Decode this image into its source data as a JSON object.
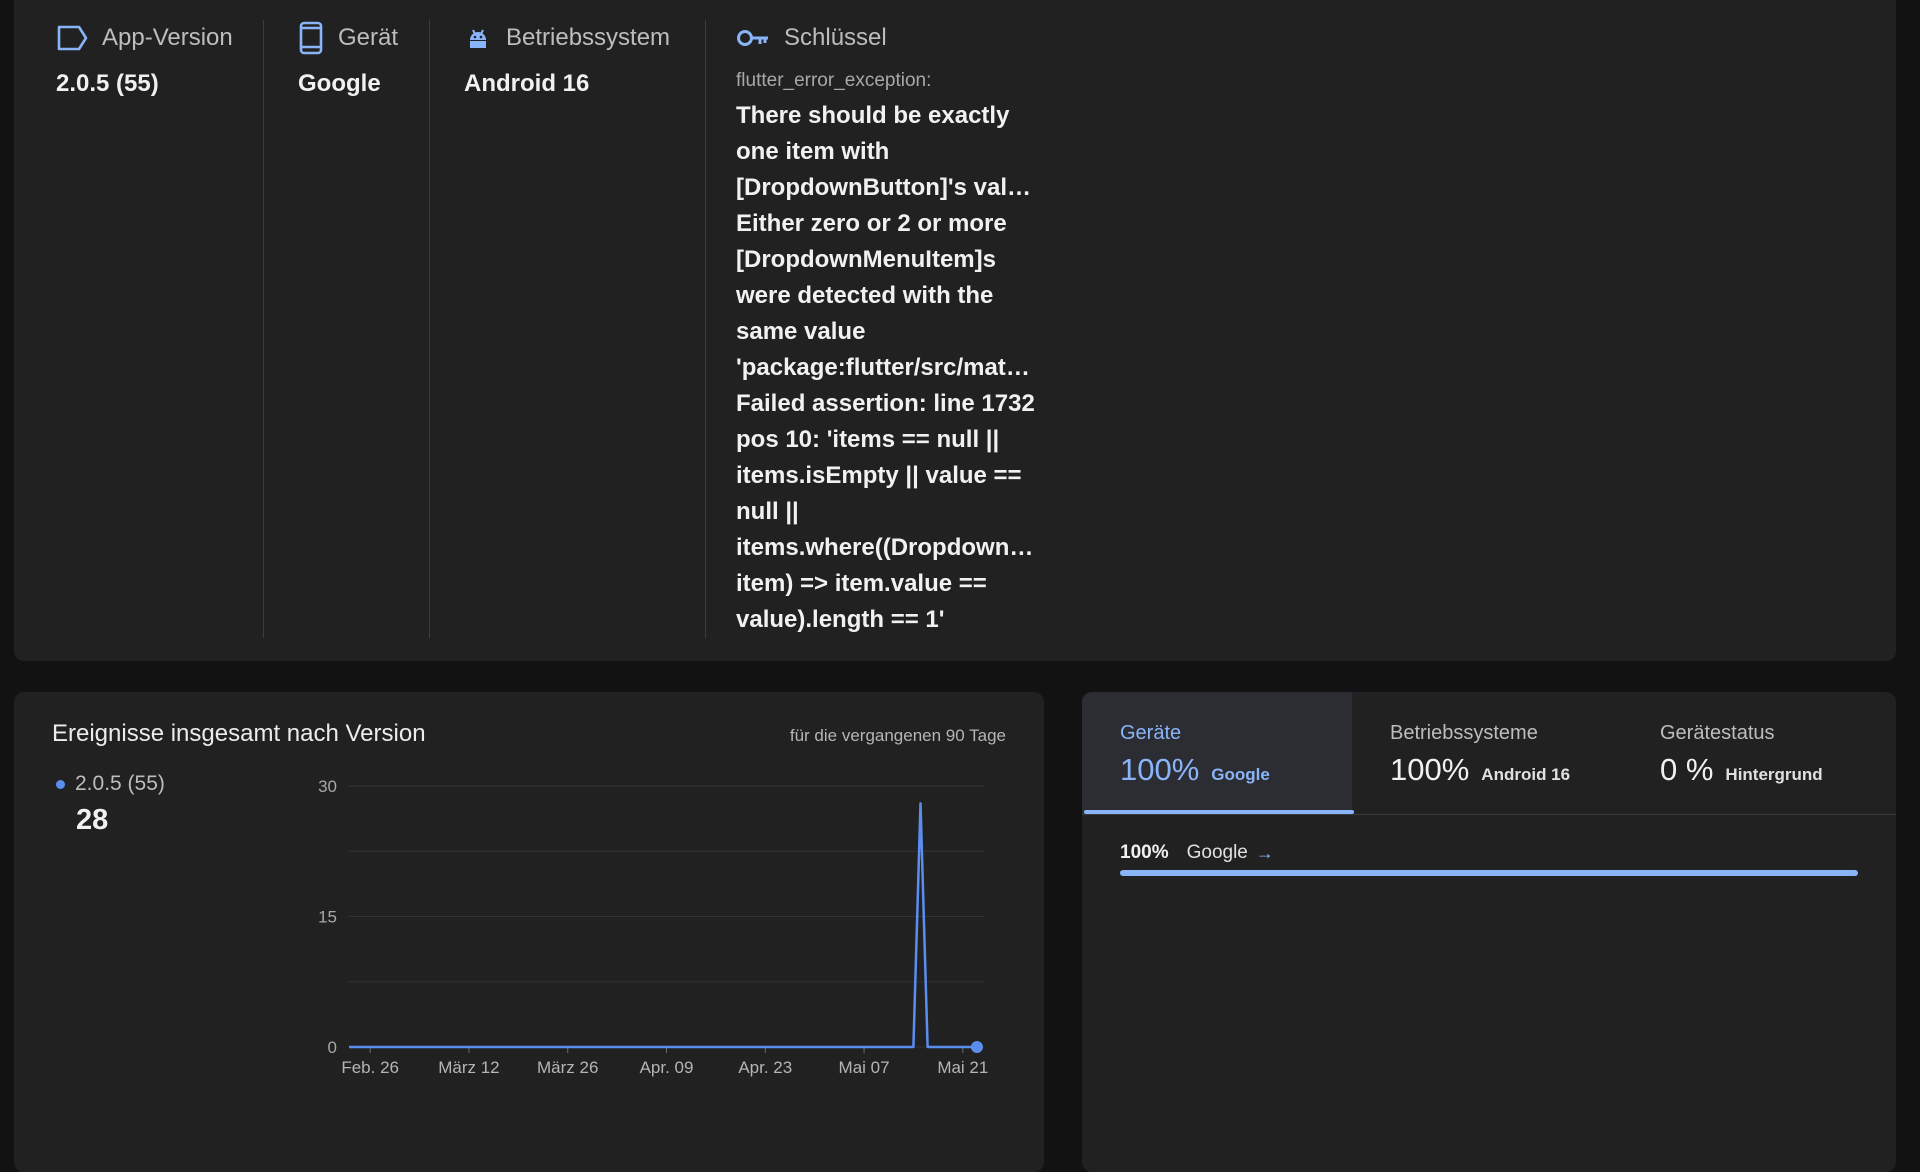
{
  "meta": {
    "app_version": {
      "label": "App-Version",
      "value": "2.0.5 (55)",
      "icon": "label-tag-icon"
    },
    "device": {
      "label": "Gerät",
      "value": "Google",
      "icon": "smartphone-icon"
    },
    "os": {
      "label": "Betriebssystem",
      "value": "Android 16",
      "icon": "android-icon"
    },
    "key": {
      "label": "Schlüssel",
      "icon": "key-icon",
      "name": "flutter_error_exception:",
      "message_lines": [
        "There should be exactly",
        "one item with",
        "[DropdownButton]'s value: .",
        "Either zero or 2 or more",
        "[DropdownMenuItem]s",
        "were detected with the",
        "same value",
        "'package:flutter/src/mater…",
        "Failed assertion: line 1732",
        "pos 10: 'items == null ||",
        "items.isEmpty || value ==",
        "null ||",
        "items.where((DropdownM…",
        "item) => item.value ==",
        "value).length == 1'"
      ]
    }
  },
  "events_chart": {
    "title": "Ereignisse insgesamt nach Version",
    "period": "für die vergangenen 90 Tage",
    "legend": {
      "series": "2.0.5 (55)",
      "total": "28"
    }
  },
  "chart_data": {
    "type": "line",
    "title": "Ereignisse insgesamt nach Version",
    "xlabel": "",
    "ylabel": "",
    "ylim": [
      0,
      30
    ],
    "yticks": [
      "0",
      "15",
      "30"
    ],
    "xtick_labels": [
      "Feb. 26",
      "März 12",
      "März 26",
      "Apr. 09",
      "Apr. 23",
      "Mai 07",
      "Mai 21"
    ],
    "xtick_days": [
      0,
      14,
      28,
      42,
      56,
      70,
      84
    ],
    "x_range_days": [
      -3,
      87
    ],
    "series": [
      {
        "name": "2.0.5 (55)",
        "color": "#5b8def",
        "points": [
          [
            -3,
            0
          ],
          [
            77,
            0
          ],
          [
            78,
            28
          ],
          [
            79,
            0
          ],
          [
            86,
            0
          ]
        ]
      }
    ],
    "grid": true
  },
  "stats": {
    "tabs": [
      {
        "label": "Geräte",
        "percent": "100%",
        "sub": "Google",
        "active": true
      },
      {
        "label": "Betriebssysteme",
        "percent": "100%",
        "sub": "Android 16",
        "active": false
      },
      {
        "label": "Gerätestatus",
        "percent": "0 %",
        "sub": "Hintergrund",
        "active": false
      }
    ],
    "breakdown": {
      "percent": "100%",
      "name": "Google",
      "arrow": "→",
      "fraction": 1.0
    }
  },
  "colors": {
    "accent": "#8ab4f8",
    "series": "#5b8def",
    "card": "#212121",
    "background": "#121212"
  }
}
